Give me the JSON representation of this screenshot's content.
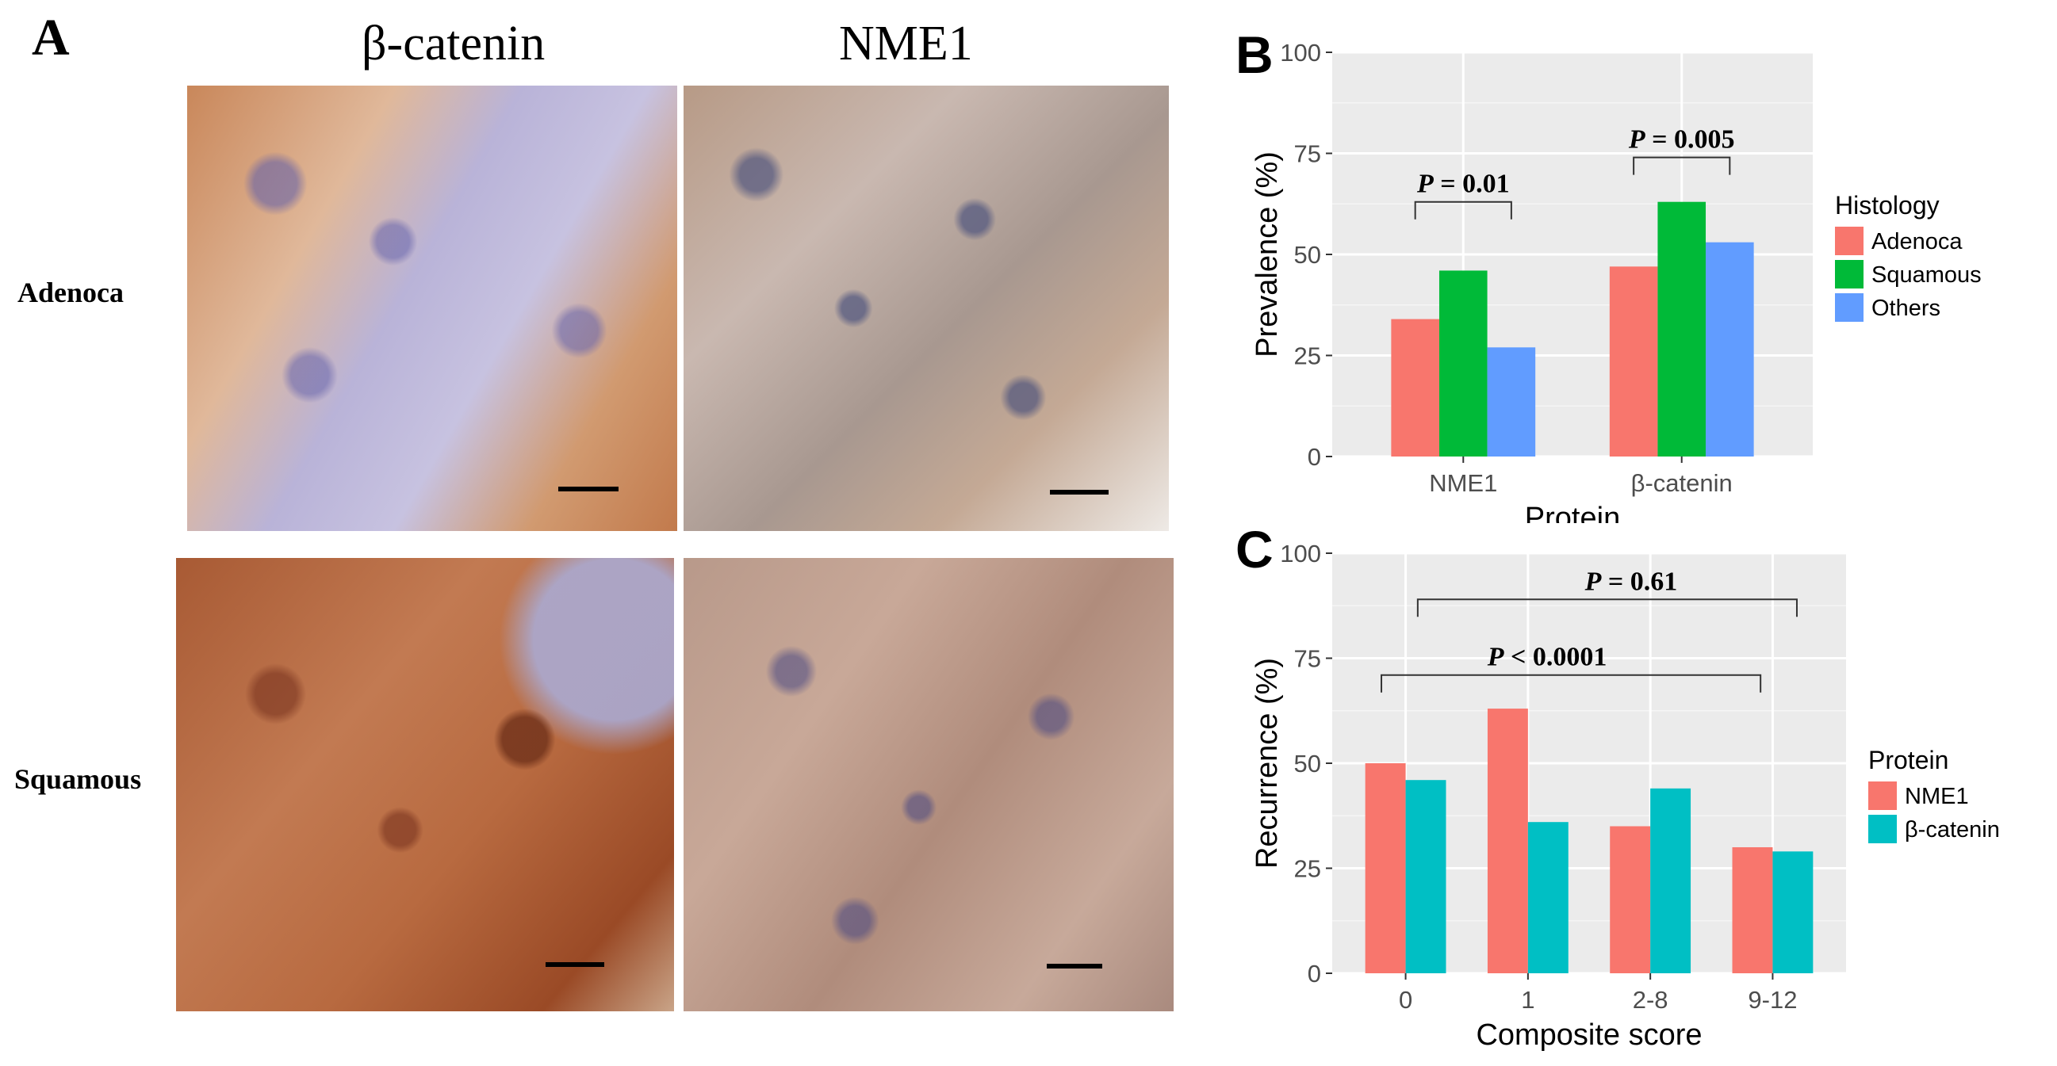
{
  "panel_a": {
    "letter": "A",
    "col_headers": [
      "β-catenin",
      "NME1"
    ],
    "row_headers": [
      "Adenoca",
      "Squamous"
    ]
  },
  "chart_data": [
    {
      "panel": "B",
      "type": "bar",
      "xlabel": "Protein",
      "ylabel": "Prevalence (%)",
      "ylim": [
        0,
        100
      ],
      "yticks": [
        0,
        25,
        50,
        75,
        100
      ],
      "categories": [
        "NME1",
        "β-catenin"
      ],
      "series": [
        {
          "name": "Adenoca",
          "values": [
            34,
            47
          ],
          "color": "#f8766d"
        },
        {
          "name": "Squamous",
          "values": [
            46,
            63
          ],
          "color": "#00ba38"
        },
        {
          "name": "Others",
          "values": [
            27,
            53
          ],
          "color": "#619cff"
        }
      ],
      "legend": {
        "title": "Histology",
        "placement": "right"
      },
      "annotations": [
        {
          "prefix": "P",
          "text": " = 0.01",
          "from": "NME1",
          "to": "NME1"
        },
        {
          "prefix": "P",
          "text": " = 0.005",
          "from": "β-catenin",
          "to": "β-catenin"
        }
      ],
      "grid": true
    },
    {
      "panel": "C",
      "type": "bar",
      "xlabel": "Composite score",
      "ylabel": "Recurrence (%)",
      "ylim": [
        0,
        100
      ],
      "yticks": [
        0,
        25,
        50,
        75,
        100
      ],
      "categories": [
        "0",
        "1",
        "2-8",
        "9-12"
      ],
      "series": [
        {
          "name": "NME1",
          "values": [
            50,
            63,
            35,
            30
          ],
          "color": "#f8766d"
        },
        {
          "name": "β-catenin",
          "values": [
            46,
            36,
            44,
            29
          ],
          "color": "#00bfc4"
        }
      ],
      "legend": {
        "title": "Protein",
        "placement": "right"
      },
      "annotations": [
        {
          "prefix": "P",
          "text": " = 0.61",
          "from": "0",
          "to": "9-12"
        },
        {
          "prefix": "P",
          "text": " < 0.0001",
          "from": "0",
          "to": "9-12"
        }
      ],
      "grid": true
    }
  ]
}
